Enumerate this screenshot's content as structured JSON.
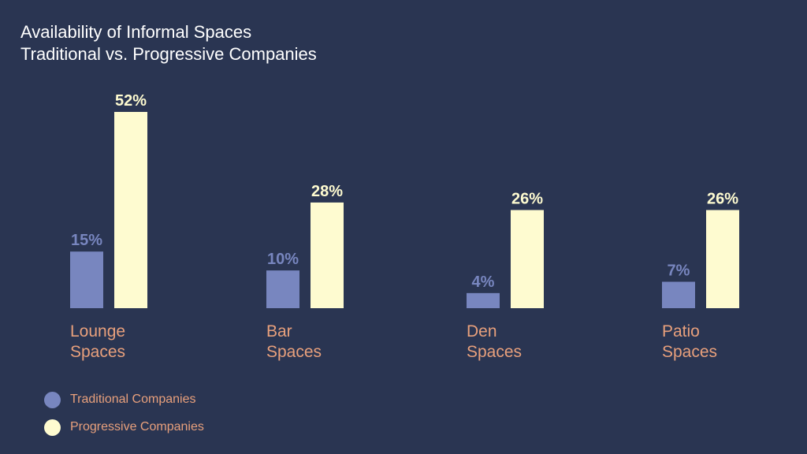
{
  "chart_data": {
    "type": "bar",
    "title": "Availability of Informal Spaces",
    "subtitle": "Traditional vs. Progressive Companies",
    "categories": [
      [
        "Lounge",
        "Spaces"
      ],
      [
        "Bar",
        "Spaces"
      ],
      [
        "Den",
        "Spaces"
      ],
      [
        "Patio",
        "Spaces"
      ]
    ],
    "series": [
      {
        "name": "Traditional Companies",
        "values": [
          15,
          10,
          4,
          7
        ],
        "labels": [
          "15%",
          "10%",
          "4%",
          "7%"
        ],
        "color": "#7886bf"
      },
      {
        "name": "Progressive Companies",
        "values": [
          52,
          28,
          26,
          26
        ],
        "labels": [
          "52%",
          "28%",
          "26%",
          "26%"
        ],
        "color": "#fefbd0"
      }
    ],
    "ylim": [
      0,
      52
    ],
    "unit": "%",
    "grid": false,
    "legend_position": "bottom-left",
    "colors": {
      "background": "#2a3552",
      "title": "#ffffff",
      "category_label": "#e8a07c",
      "legend_label": "#e8a07c"
    }
  }
}
